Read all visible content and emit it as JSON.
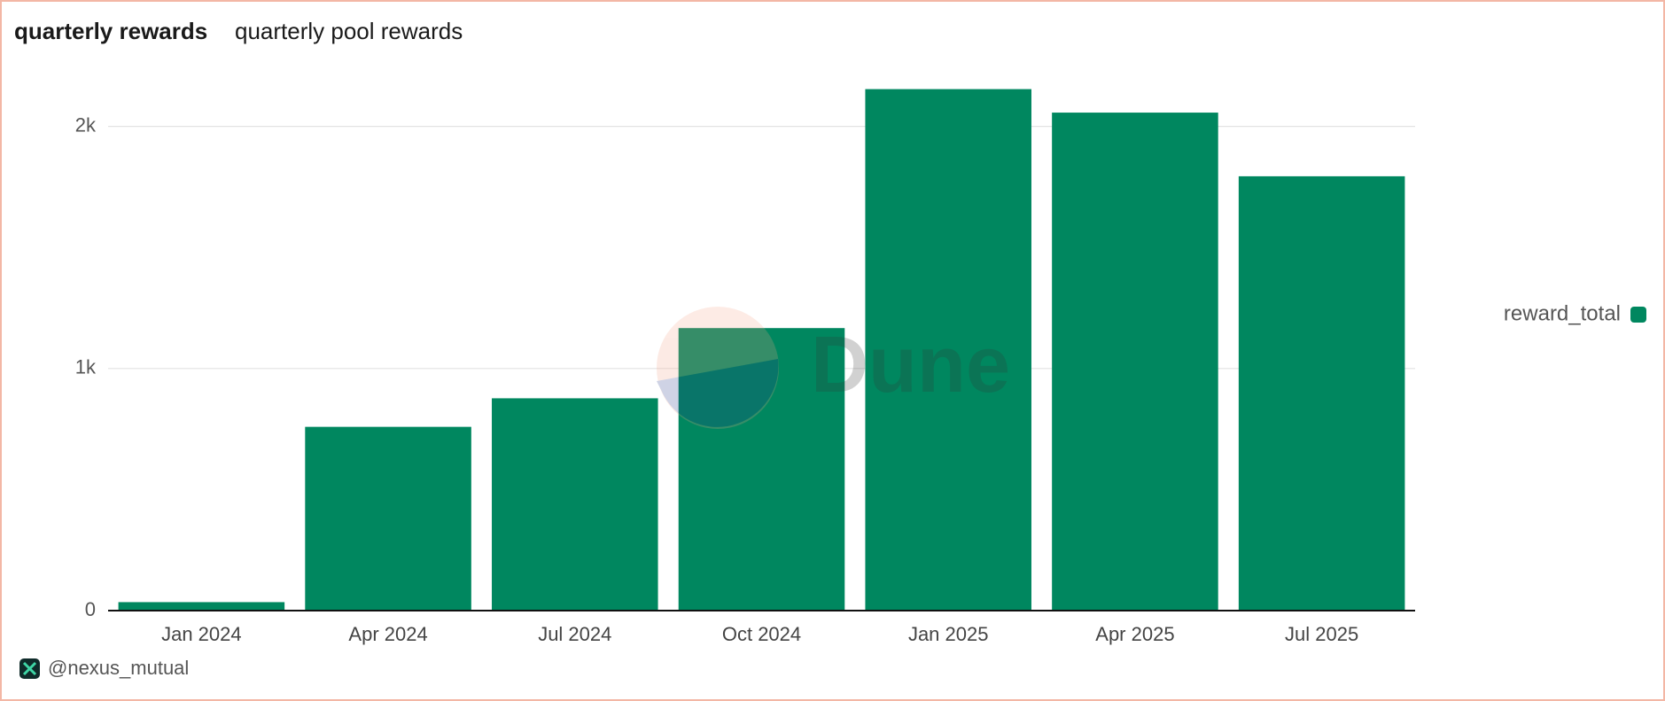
{
  "chart_data": {
    "type": "bar",
    "title": "quarterly rewards",
    "subtitle": "quarterly pool rewards",
    "categories": [
      "Jan 2024",
      "Apr 2024",
      "Jul 2024",
      "Oct 2024",
      "Jan 2025",
      "Apr 2025",
      "Jul 2025"
    ],
    "series": [
      {
        "name": "reward_total",
        "color": "#00875f",
        "values": [
          35,
          759,
          877,
          1167,
          2154,
          2057,
          1794
        ]
      }
    ],
    "ylim": [
      0,
      2200
    ],
    "yticks": [
      0,
      {
        "value": 1000,
        "label": "1k"
      },
      {
        "value": 2000,
        "label": "2k"
      }
    ],
    "grid": true,
    "legend": "right",
    "watermark": "Dune",
    "author": "@nexus_mutual"
  }
}
